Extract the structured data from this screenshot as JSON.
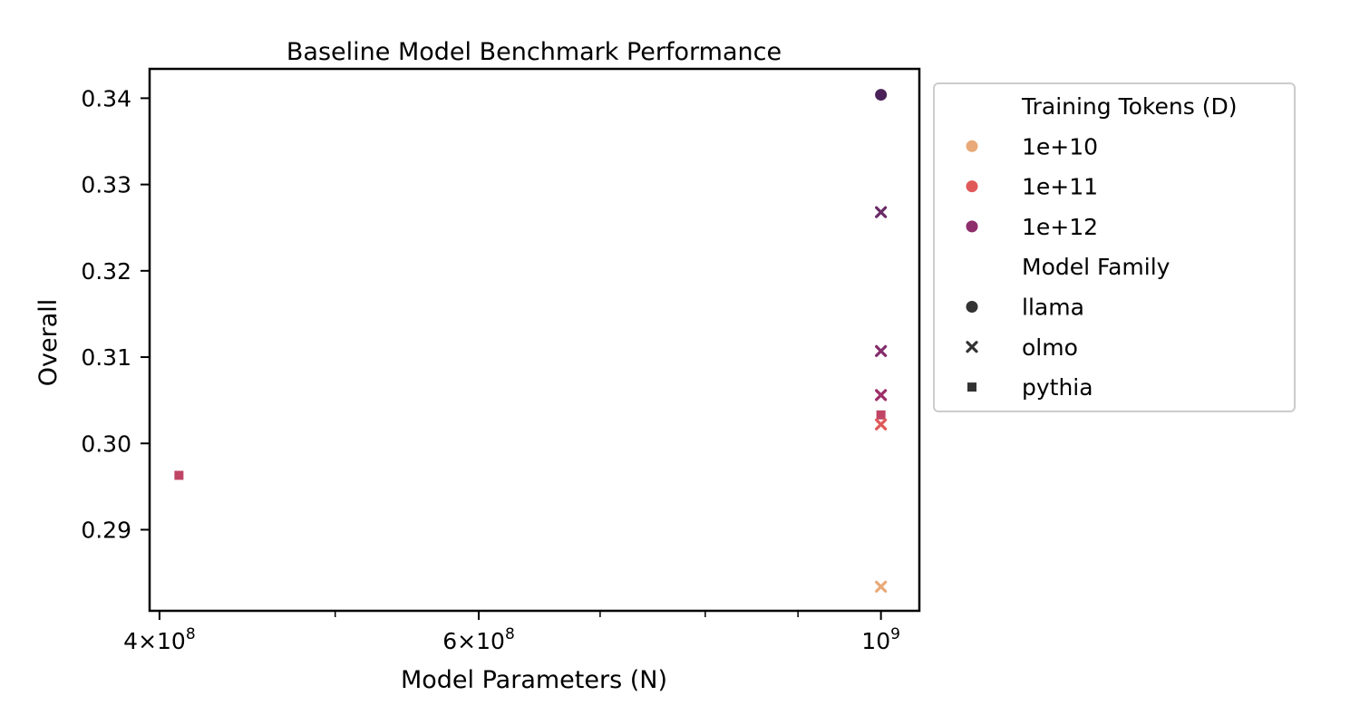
{
  "chart_data": {
    "type": "scatter",
    "title": "Baseline Model Benchmark Performance",
    "xlabel": "Model Parameters (N)",
    "ylabel": "Overall",
    "xscale": "log",
    "xlim": [
      395000000,
      1050000000
    ],
    "ylim": [
      0.2806,
      0.3434
    ],
    "grid": false,
    "x_major_ticks": [
      {
        "value": 400000000,
        "base": "4",
        "exp": "8",
        "prefix": "4×10"
      },
      {
        "value": 600000000,
        "base": "6",
        "exp": "8",
        "prefix": "6×10"
      },
      {
        "value": 1000000000,
        "base": "",
        "exp": "9",
        "prefix": "10"
      }
    ],
    "x_minor_ticks": [
      500000000,
      700000000,
      800000000,
      900000000
    ],
    "y_ticks": [
      "0.29",
      "0.30",
      "0.31",
      "0.32",
      "0.33",
      "0.34"
    ],
    "legend": {
      "placement": "outside-right",
      "hue_title": "Training Tokens (D)",
      "hue_entries": [
        {
          "label": "1e+10",
          "color": "#e9a978"
        },
        {
          "label": "1e+11",
          "color": "#e05a5a"
        },
        {
          "label": "1e+12",
          "color": "#8e2e6c"
        }
      ],
      "style_title": "Model Family",
      "style_entries": [
        {
          "label": " llama",
          "marker": "circle"
        },
        {
          "label": " olmo",
          "marker": "x"
        },
        {
          "label": " pythia",
          "marker": "square"
        }
      ]
    },
    "points": [
      {
        "x": 1000000000,
        "y": 0.3404,
        "family": "llama",
        "marker": "circle",
        "color": "#4a2158"
      },
      {
        "x": 1000000000,
        "y": 0.3268,
        "family": "olmo",
        "marker": "x",
        "color": "#6a2a68"
      },
      {
        "x": 1000000000,
        "y": 0.3107,
        "family": "olmo",
        "marker": "x",
        "color": "#852c6c"
      },
      {
        "x": 1000000000,
        "y": 0.3056,
        "family": "olmo",
        "marker": "x",
        "color": "#9e3068"
      },
      {
        "x": 1000000000,
        "y": 0.3033,
        "family": "pythia",
        "marker": "square",
        "color": "#c04565"
      },
      {
        "x": 1000000000,
        "y": 0.3022,
        "family": "olmo",
        "marker": "x",
        "color": "#e05a5a"
      },
      {
        "x": 1000000000,
        "y": 0.2834,
        "family": "olmo",
        "marker": "x",
        "color": "#e9a978"
      },
      {
        "x": 410000000,
        "y": 0.2963,
        "family": "pythia",
        "marker": "square",
        "color": "#c04565"
      }
    ]
  }
}
